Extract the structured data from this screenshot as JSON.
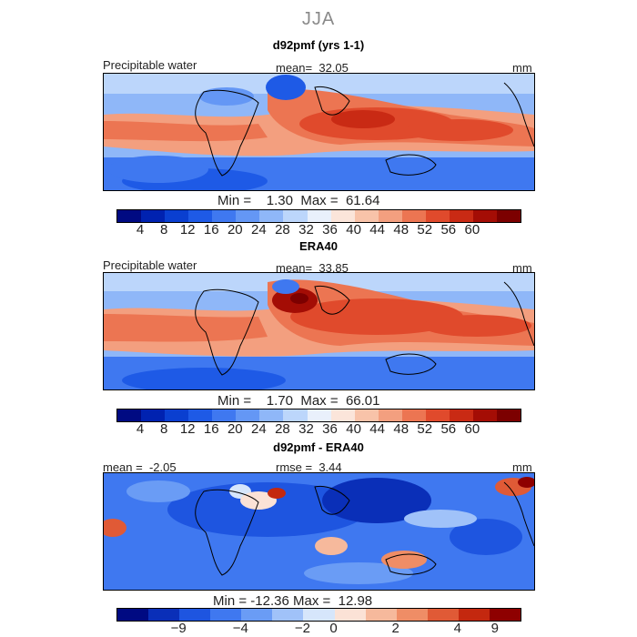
{
  "season": "JJA",
  "units": "mm",
  "panels": [
    {
      "title": "d92pmf (yrs 1-1)",
      "variable": "Precipitable water",
      "stat_label": "mean=",
      "stat_value": "32.05",
      "min_label": "Min =",
      "min_value": "1.30",
      "max_label": "Max =",
      "max_value": "61.64"
    },
    {
      "title": "ERA40",
      "variable": "Precipitable water",
      "stat_label": "mean=",
      "stat_value": "33.85",
      "min_label": "Min =",
      "min_value": "1.70",
      "max_label": "Max =",
      "max_value": "66.01"
    },
    {
      "title": "d92pmf - ERA40",
      "mean_label": "mean =",
      "mean_value": "-2.05",
      "rmse_label": "rmse =",
      "rmse_value": "3.44",
      "min_label": "Min =",
      "min_value": "-12.36",
      "max_label": "Max =",
      "max_value": "12.98"
    }
  ],
  "abs_colorbar": {
    "colors": [
      "#000a82",
      "#0022b0",
      "#0a3fd0",
      "#1e5ae6",
      "#3f78f0",
      "#6497f5",
      "#8fb7f8",
      "#bcd6fb",
      "#e9f0fb",
      "#fbe5da",
      "#f8c3a9",
      "#f39f7f",
      "#ec7552",
      "#e04a2c",
      "#c92a14",
      "#a40d05",
      "#7c0000"
    ],
    "ticks": [
      "4",
      "8",
      "12",
      "16",
      "20",
      "24",
      "28",
      "32",
      "36",
      "40",
      "44",
      "48",
      "52",
      "56",
      "60"
    ]
  },
  "diff_colorbar": {
    "colors": [
      "#000a82",
      "#0a2fb8",
      "#1e55e0",
      "#3f78f0",
      "#6a9cf5",
      "#a0c2f9",
      "#d6e6fb",
      "#fbe2d6",
      "#f6b99c",
      "#ef8d66",
      "#e05a36",
      "#c4280f",
      "#8e0000"
    ],
    "ticks": [
      "−9",
      "−4",
      "−2",
      "0",
      "2",
      "4",
      "9"
    ]
  },
  "chart_data": {
    "type": "map",
    "title": "JJA",
    "panels": [
      {
        "name": "d92pmf (yrs 1-1)",
        "variable": "Precipitable water",
        "units": "mm",
        "mean": 32.05,
        "min": 1.3,
        "max": 61.64,
        "levels": [
          4,
          8,
          12,
          16,
          20,
          24,
          28,
          32,
          36,
          40,
          44,
          48,
          52,
          56,
          60
        ]
      },
      {
        "name": "ERA40",
        "variable": "Precipitable water",
        "units": "mm",
        "mean": 33.85,
        "min": 1.7,
        "max": 66.01,
        "levels": [
          4,
          8,
          12,
          16,
          20,
          24,
          28,
          32,
          36,
          40,
          44,
          48,
          52,
          56,
          60
        ]
      },
      {
        "name": "d92pmf - ERA40",
        "units": "mm",
        "mean": -2.05,
        "rmse": 3.44,
        "min": -12.36,
        "max": 12.98,
        "levels": [
          -9,
          -4,
          -2,
          0,
          2,
          4,
          9
        ]
      }
    ]
  }
}
